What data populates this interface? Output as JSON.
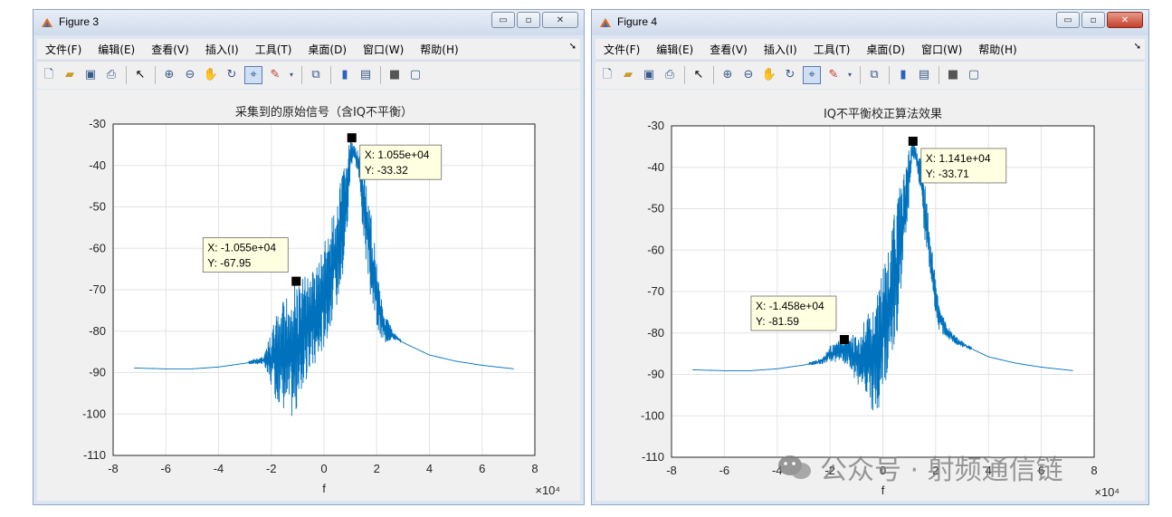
{
  "windows": [
    {
      "title": "Figure 3",
      "controls": {
        "minimize": "▭",
        "maximize": "▫",
        "close": "✕"
      },
      "menu": [
        "文件(F)",
        "编辑(E)",
        "查看(V)",
        "插入(I)",
        "工具(T)",
        "桌面(D)",
        "窗口(W)",
        "帮助(H)"
      ],
      "toolbar_icons": [
        "new-figure-icon",
        "open-file-icon",
        "save-icon",
        "print-icon",
        "edit-plot-icon",
        "zoom-in-icon",
        "zoom-out-icon",
        "pan-icon",
        "rotate-3d-icon",
        "data-cursor-icon",
        "brush-icon",
        "link-icon",
        "colorbar-icon",
        "legend-icon",
        "hide-plot-tools-icon",
        "show-plot-tools-icon"
      ],
      "chart_data": {
        "type": "line",
        "title": "采集到的原始信号（含IQ不平衡）",
        "xlabel": "f",
        "x_exponent": "×10⁴",
        "xlim": [
          -8,
          8
        ],
        "ylim": [
          -110,
          -30
        ],
        "xticks": [
          "-8",
          "-6",
          "-4",
          "-2",
          "0",
          "2",
          "4",
          "6",
          "8"
        ],
        "yticks": [
          "-30",
          "-40",
          "-50",
          "-60",
          "-70",
          "-80",
          "-90",
          "-100",
          "-110"
        ],
        "grid": true,
        "series_color": "#0072bd",
        "envelope_x": [
          -7.2,
          -6,
          -5,
          -4,
          -3,
          -2.3,
          -2.1,
          -1.8,
          -1.5,
          -1.2,
          -1.0,
          -0.8,
          -0.5,
          -0.2,
          0.1,
          0.4,
          0.7,
          0.9,
          1.0,
          1.1,
          1.3,
          1.5,
          1.8,
          2.1,
          2.3,
          2.6,
          3,
          3.5,
          4,
          5,
          6,
          7.2
        ],
        "envelope_upper": [
          -88.8,
          -89,
          -89,
          -88.5,
          -87.5,
          -86,
          -82,
          -76,
          -72,
          -69,
          -67.5,
          -67,
          -66,
          -63,
          -57,
          -50,
          -42,
          -36,
          -33.3,
          -34,
          -36,
          -40,
          -52,
          -68,
          -75,
          -80,
          -82.5,
          -84,
          -85.5,
          -87,
          -88,
          -89
        ],
        "envelope_lower": [
          -89,
          -89.2,
          -89.2,
          -88.8,
          -88,
          -88,
          -92,
          -97,
          -99,
          -101,
          -100,
          -94,
          -90,
          -88,
          -82,
          -76,
          -68,
          -55,
          -42,
          -38,
          -42,
          -58,
          -74,
          -82,
          -83,
          -82,
          -83,
          -84.5,
          -86,
          -87.5,
          -88.5,
          -89.2
        ],
        "datatips": [
          {
            "x": 1.055,
            "y": -33.32,
            "label_x": "X: 1.055e+04",
            "label_y": "Y: -33.32"
          },
          {
            "x": -1.055,
            "y": -67.95,
            "label_x": "X: -1.055e+04",
            "label_y": "Y: -67.95"
          }
        ]
      }
    },
    {
      "title": "Figure 4",
      "controls": {
        "minimize": "▭",
        "maximize": "▫",
        "close": "✕"
      },
      "menu": [
        "文件(F)",
        "编辑(E)",
        "查看(V)",
        "插入(I)",
        "工具(T)",
        "桌面(D)",
        "窗口(W)",
        "帮助(H)"
      ],
      "toolbar_icons": [
        "new-figure-icon",
        "open-file-icon",
        "save-icon",
        "print-icon",
        "edit-plot-icon",
        "zoom-in-icon",
        "zoom-out-icon",
        "pan-icon",
        "rotate-3d-icon",
        "data-cursor-icon",
        "brush-icon",
        "link-icon",
        "colorbar-icon",
        "legend-icon",
        "hide-plot-tools-icon",
        "show-plot-tools-icon"
      ],
      "chart_data": {
        "type": "line",
        "title": "IQ不平衡校正算法效果",
        "xlabel": "f",
        "x_exponent": "×10⁴",
        "xlim": [
          -8,
          8
        ],
        "ylim": [
          -110,
          -30
        ],
        "xticks": [
          "-8",
          "-6",
          "-4",
          "-2",
          "0",
          "2",
          "4",
          "6",
          "8"
        ],
        "yticks": [
          "-30",
          "-40",
          "-50",
          "-60",
          "-70",
          "-80",
          "-90",
          "-100",
          "-110"
        ],
        "grid": true,
        "series_color": "#0072bd",
        "envelope_x": [
          -7.2,
          -6,
          -5,
          -4,
          -3,
          -2.3,
          -2.0,
          -1.6,
          -1.3,
          -1.0,
          -0.7,
          -0.4,
          -0.1,
          0.2,
          0.5,
          0.8,
          1.0,
          1.1,
          1.2,
          1.4,
          1.6,
          1.9,
          2.1,
          2.4,
          2.8,
          3.5,
          4,
          5,
          6,
          7.2
        ],
        "envelope_upper": [
          -88.8,
          -89,
          -89,
          -88.5,
          -87.5,
          -86,
          -83,
          -81.6,
          -81,
          -80,
          -77,
          -72,
          -66,
          -58,
          -49,
          -40,
          -35,
          -33.7,
          -34,
          -37,
          -44,
          -62,
          -72,
          -78,
          -81,
          -84,
          -85.5,
          -87,
          -88,
          -89
        ],
        "envelope_lower": [
          -89,
          -89.2,
          -89.2,
          -88.8,
          -88,
          -87.5,
          -87,
          -87,
          -88,
          -92,
          -95,
          -99,
          -98,
          -92,
          -82,
          -66,
          -50,
          -40,
          -38,
          -45,
          -58,
          -72,
          -79,
          -81.5,
          -83,
          -84.5,
          -86,
          -87.5,
          -88.5,
          -89.2
        ],
        "datatips": [
          {
            "x": 1.141,
            "y": -33.71,
            "label_x": "X: 1.141e+04",
            "label_y": "Y: -33.71"
          },
          {
            "x": -1.458,
            "y": -81.59,
            "label_x": "X: -1.458e+04",
            "label_y": "Y: -81.59"
          }
        ]
      }
    }
  ],
  "watermark": {
    "text": "公众号 · 射频通信链",
    "icon": "wechat-icon"
  }
}
